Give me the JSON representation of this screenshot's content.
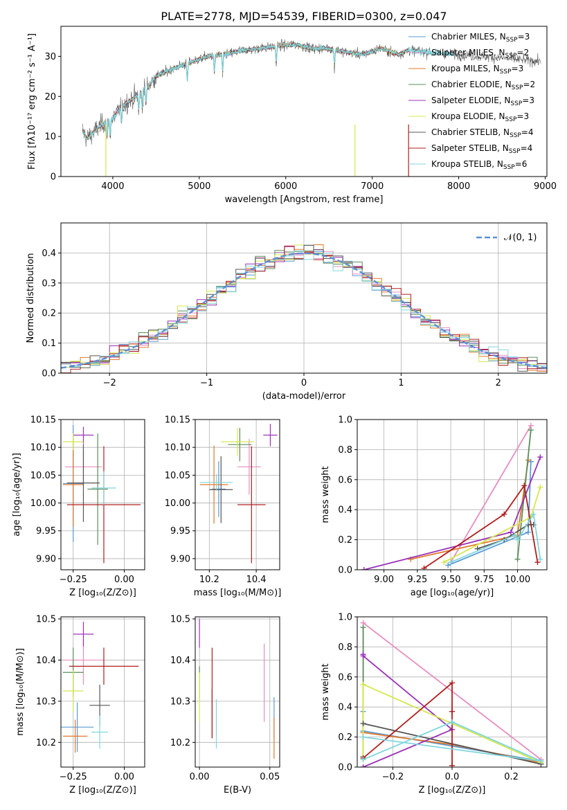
{
  "figure_title": "PLATE=2778, MJD=54539, FIBERID=0300, z=0.047",
  "legend_entries": [
    {
      "label": "Chabrier MILES, N",
      "sub": "SSP",
      "suffix": "=3",
      "color": "#5b9bd5"
    },
    {
      "label": "Salpeter MILES, N",
      "sub": "SSP",
      "suffix": "=2",
      "color": "#e88cc0"
    },
    {
      "label": "Kroupa MILES, N",
      "sub": "SSP",
      "suffix": "=3",
      "color": "#e0792b"
    },
    {
      "label": "Chabrier ELODIE, N",
      "sub": "SSP",
      "suffix": "=2",
      "color": "#5a8c5a"
    },
    {
      "label": "Salpeter ELODIE, N",
      "sub": "SSP",
      "suffix": "=3",
      "color": "#9b30b8"
    },
    {
      "label": "Kroupa ELODIE, N",
      "sub": "SSP",
      "suffix": "=3",
      "color": "#d4e84a"
    },
    {
      "label": "Chabrier STELIB, N",
      "sub": "SSP",
      "suffix": "=4",
      "color": "#555555"
    },
    {
      "label": "Salpeter STELIB, N",
      "sub": "SSP",
      "suffix": "=4",
      "color": "#b01c1c"
    },
    {
      "label": "Kroupa STELIB, N",
      "sub": "SSP",
      "suffix": "=6",
      "color": "#7fd6dc"
    }
  ],
  "chart_data": [
    {
      "id": "spectrum",
      "type": "line",
      "xlabel": "wavelength [Angstrom, rest frame]",
      "ylabel": "Flux [fλ10⁻¹⁷ erg cm⁻² s⁻¹ A⁻¹]",
      "xlim": [
        3400,
        9020
      ],
      "ylim": [
        0,
        37.5
      ],
      "xticks": [
        "4000",
        "5000",
        "6000",
        "7000",
        "8000",
        "9000"
      ],
      "yticks": [
        "0",
        "10",
        "20",
        "30"
      ],
      "continuum": {
        "x": [
          3650,
          3700,
          3800,
          3900,
          4000,
          4100,
          4200,
          4300,
          4400,
          4500,
          4700,
          4900,
          5100,
          5300,
          5500,
          5700,
          5900,
          6100,
          6300,
          6500,
          6700,
          6900,
          7100,
          7300,
          7420
        ],
        "y": [
          11.5,
          9.5,
          11.5,
          13.5,
          14.5,
          17.5,
          19.0,
          20.5,
          22.5,
          25.0,
          27.0,
          28.5,
          30.0,
          30.5,
          31.5,
          32.0,
          32.5,
          33.0,
          32.0,
          32.0,
          31.0,
          30.5,
          32.0,
          30.5,
          31.5
        ]
      },
      "observed_extends_to": 8950,
      "dropouts_x": [
        3920,
        6800,
        7420
      ]
    },
    {
      "id": "residuals",
      "type": "line",
      "xlabel": "(data-model)/error",
      "ylabel": "Normed distribution",
      "xlim": [
        -2.5,
        2.5
      ],
      "ylim": [
        0,
        0.5
      ],
      "xticks": [
        "−2",
        "−1",
        "0",
        "1",
        "2"
      ],
      "yticks": [
        "0.0",
        "0.1",
        "0.2",
        "0.3",
        "0.4"
      ],
      "legend": "𝒩(0, 1)",
      "bin_width": 0.1
    },
    {
      "id": "age-vs-Z",
      "type": "scatter",
      "xlabel": "Z [log₁₀(Z/Z⊙)]",
      "ylabel": "age  [log₁₀(age/yr)]",
      "xlim": [
        -0.31,
        0.1
      ],
      "ylim": [
        9.88,
        10.15
      ],
      "xticks": [
        "−0.25",
        "0.00"
      ],
      "yticks": [
        "9.90",
        "9.95",
        "10.00",
        "10.05",
        "10.10",
        "10.15"
      ],
      "points": [
        {
          "x": -0.25,
          "y": 10.035,
          "xerr": 0.05,
          "yerr": 0.105
        },
        {
          "x": -0.2,
          "y": 10.065,
          "xerr": 0.09,
          "yerr": 0.03
        },
        {
          "x": -0.25,
          "y": 10.033,
          "xerr": 0.05,
          "yerr": 0.075
        },
        {
          "x": -0.13,
          "y": 10.025,
          "xerr": 0.05,
          "yerr": 0.1
        },
        {
          "x": -0.2,
          "y": 10.122,
          "xerr": 0.05,
          "yerr": 0.015
        },
        {
          "x": -0.25,
          "y": 10.11,
          "xerr": 0.05,
          "yerr": 0.015
        },
        {
          "x": -0.2,
          "y": 10.036,
          "xerr": 0.08,
          "yerr": 0.07
        },
        {
          "x": -0.1,
          "y": 9.997,
          "xerr": 0.18,
          "yerr": 0.105
        },
        {
          "x": -0.1,
          "y": 10.027,
          "xerr": 0.06,
          "yerr": 0.03
        }
      ]
    },
    {
      "id": "age-vs-mass",
      "type": "scatter",
      "xlabel": "mass [log₁₀(M/M⊙)]",
      "ylabel": "",
      "xlim": [
        10.14,
        10.5
      ],
      "ylim": [
        9.88,
        10.15
      ],
      "xticks": [
        "10.2",
        "10.4"
      ],
      "yticks": [
        "9.90",
        "9.95",
        "10.00",
        "10.05",
        "10.10",
        "10.15"
      ],
      "points": [
        {
          "x": 10.24,
          "y": 10.025,
          "xerr": 0.03,
          "yerr": 0.05
        },
        {
          "x": 10.37,
          "y": 10.065,
          "xerr": 0.05,
          "yerr": 0.05
        },
        {
          "x": 10.22,
          "y": 10.033,
          "xerr": 0.06,
          "yerr": 0.07
        },
        {
          "x": 10.33,
          "y": 10.105,
          "xerr": 0.05,
          "yerr": 0.03
        },
        {
          "x": 10.46,
          "y": 10.122,
          "xerr": 0.03,
          "yerr": 0.02
        },
        {
          "x": 10.32,
          "y": 10.11,
          "xerr": 0.07,
          "yerr": 0.025
        },
        {
          "x": 10.25,
          "y": 10.024,
          "xerr": 0.05,
          "yerr": 0.06
        },
        {
          "x": 10.38,
          "y": 9.997,
          "xerr": 0.06,
          "yerr": 0.105
        },
        {
          "x": 10.23,
          "y": 10.037,
          "xerr": 0.07,
          "yerr": 0.015
        }
      ]
    },
    {
      "id": "weight-vs-age",
      "type": "line",
      "xlabel": "age  [log₁₀(age/yr)]",
      "ylabel": "mass weight",
      "xlim": [
        8.8,
        10.22
      ],
      "ylim": [
        0,
        1
      ],
      "xticks": [
        "9.00",
        "9.25",
        "9.50",
        "9.75",
        "10.00"
      ],
      "yticks": [
        "0.0",
        "0.2",
        "0.4",
        "0.6",
        "0.8",
        "1.0"
      ],
      "series": [
        {
          "x": [
            9.48,
            10.08,
            10.1
          ],
          "y": [
            0.03,
            0.25,
            0.72
          ]
        },
        {
          "x": [
            9.5,
            10.1
          ],
          "y": [
            0.05,
            0.96
          ]
        },
        {
          "x": [
            9.2,
            10.0,
            10.08
          ],
          "y": [
            0.07,
            0.23,
            0.73
          ]
        },
        {
          "x": [
            10.0,
            10.1
          ],
          "y": [
            0.07,
            0.93
          ]
        },
        {
          "x": [
            8.85,
            9.95,
            10.17
          ],
          "y": [
            0.0,
            0.25,
            0.75
          ]
        },
        {
          "x": [
            9.45,
            10.1,
            10.17
          ],
          "y": [
            0.05,
            0.35,
            0.55
          ]
        },
        {
          "x": [
            9.7,
            9.9,
            10.08,
            10.12
          ],
          "y": [
            0.14,
            0.2,
            0.3,
            0.3
          ]
        },
        {
          "x": [
            9.3,
            9.9,
            10.05,
            10.15
          ],
          "y": [
            0.01,
            0.37,
            0.56,
            0.05
          ]
        },
        {
          "x": [
            9.5,
            9.98,
            10.0,
            10.12,
            10.17
          ],
          "y": [
            0.05,
            0.23,
            0.2,
            0.37,
            0.07
          ]
        }
      ]
    },
    {
      "id": "mass-vs-Z",
      "type": "scatter",
      "xlabel": "Z [log₁₀(Z/Z⊙)]",
      "ylabel": "mass [log₁₀(M/M⊙)]",
      "xlim": [
        -0.31,
        0.1
      ],
      "ylim": [
        10.14,
        10.505
      ],
      "xticks": [
        "−0.25",
        "0.00"
      ],
      "yticks": [
        "10.2",
        "10.3",
        "10.4",
        "10.5"
      ],
      "points": [
        {
          "x": -0.23,
          "y": 10.237,
          "xerr": 0.08,
          "yerr": 0.06
        },
        {
          "x": -0.2,
          "y": 10.4,
          "xerr": 0.1,
          "yerr": 0.06
        },
        {
          "x": -0.24,
          "y": 10.215,
          "xerr": 0.06,
          "yerr": 0.04
        },
        {
          "x": -0.25,
          "y": 10.37,
          "xerr": 0.05,
          "yerr": 0.06
        },
        {
          "x": -0.2,
          "y": 10.463,
          "xerr": 0.05,
          "yerr": 0.03
        },
        {
          "x": -0.25,
          "y": 10.325,
          "xerr": 0.05,
          "yerr": 0.05
        },
        {
          "x": -0.12,
          "y": 10.29,
          "xerr": 0.05,
          "yerr": 0.05
        },
        {
          "x": -0.1,
          "y": 10.385,
          "xerr": 0.17,
          "yerr": 0.045
        },
        {
          "x": -0.12,
          "y": 10.225,
          "xerr": 0.04,
          "yerr": 0.04
        }
      ]
    },
    {
      "id": "mass-vs-EBV",
      "type": "scatter",
      "xlabel": "E(B-V)",
      "ylabel": "",
      "xlim": [
        -0.003,
        0.057
      ],
      "ylim": [
        10.14,
        10.505
      ],
      "xticks": [
        "0.00",
        "0.05"
      ],
      "yticks": [
        "10.2",
        "10.3",
        "10.4",
        "10.5"
      ],
      "points": [
        {
          "x": 0.053,
          "y": 10.26,
          "xerr": 0.0,
          "yerr": 0.05
        },
        {
          "x": 0.046,
          "y": 10.345,
          "xerr": 0.0,
          "yerr": 0.095
        },
        {
          "x": 0.053,
          "y": 10.21,
          "xerr": 0.0,
          "yerr": 0.05
        },
        {
          "x": 0.0,
          "y": 10.345,
          "xerr": 0.0,
          "yerr": 0.04
        },
        {
          "x": 0.0,
          "y": 10.465,
          "xerr": 0.0,
          "yerr": 0.035
        },
        {
          "x": 0.0,
          "y": 10.31,
          "xerr": 0.0,
          "yerr": 0.06
        },
        {
          "x": 0.009,
          "y": 10.27,
          "xerr": 0.0,
          "yerr": 0.06
        },
        {
          "x": 0.009,
          "y": 10.32,
          "xerr": 0.0,
          "yerr": 0.11
        },
        {
          "x": 0.012,
          "y": 10.245,
          "xerr": 0.0,
          "yerr": 0.06
        }
      ]
    },
    {
      "id": "weight-vs-Z",
      "type": "line",
      "xlabel": "Z [log₁₀(Z/Z⊙)]",
      "ylabel": "mass weight",
      "xlim": [
        -0.32,
        0.32
      ],
      "ylim": [
        0,
        1
      ],
      "xticks": [
        "−0.2",
        "0.0",
        "0.2"
      ],
      "yticks": [
        "0.0",
        "0.2",
        "0.4",
        "0.6",
        "0.8",
        "1.0"
      ],
      "series": [
        {
          "x": [
            -0.3,
            -0.3,
            0.3
          ],
          "y": [
            0.37,
            0.24,
            0.04
          ]
        },
        {
          "x": [
            -0.3,
            0.3
          ],
          "y": [
            0.96,
            0.05
          ]
        },
        {
          "x": [
            -0.3,
            0.0,
            0.3
          ],
          "y": [
            0.23,
            0.15,
            0.03
          ]
        },
        {
          "x": [
            -0.3,
            -0.3
          ],
          "y": [
            0.07,
            0.93
          ]
        },
        {
          "x": [
            -0.3,
            0.0,
            -0.3,
            -0.3
          ],
          "y": [
            0.0,
            0.25,
            0.74,
            0.75
          ]
        },
        {
          "x": [
            -0.3,
            -0.3,
            0.3
          ],
          "y": [
            0.05,
            0.55,
            0.03
          ]
        },
        {
          "x": [
            -0.3,
            0.3
          ],
          "y": [
            0.29,
            0.02
          ]
        },
        {
          "x": [
            -0.3,
            0.0,
            0.0,
            0.0
          ],
          "y": [
            0.06,
            0.56,
            0.37,
            0.01
          ]
        },
        {
          "x": [
            -0.3,
            0.0,
            0.3,
            -0.3
          ],
          "y": [
            0.05,
            0.3,
            0.04,
            0.2
          ]
        }
      ]
    }
  ]
}
